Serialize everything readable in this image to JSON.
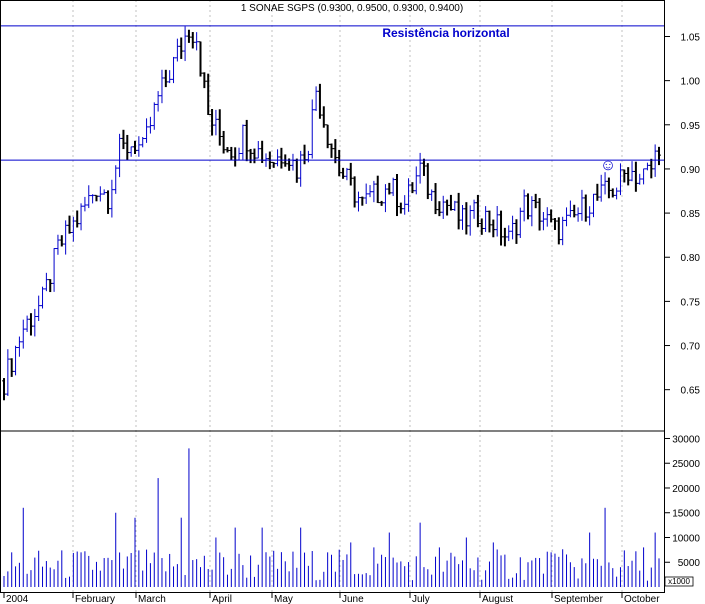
{
  "chart_data": {
    "type": "ohlc",
    "title": "1 SONAE SGPS (0.9300, 0.9500, 0.9300, 0.9400)",
    "annotation": "Resistência horizontal",
    "colors": {
      "up": "#0000cc",
      "down": "#000000",
      "line": "#0000cc",
      "grid": "#999999"
    },
    "price_axis": {
      "ylim": [
        0.61,
        1.08
      ],
      "ticks": [
        "0.65",
        "0.70",
        "0.75",
        "0.80",
        "0.85",
        "0.90",
        "0.95",
        "1.00",
        "1.05"
      ]
    },
    "volume_axis": {
      "ylim": [
        0,
        30500
      ],
      "ticks": [
        "5000",
        "10000",
        "15000",
        "20000",
        "25000",
        "30000"
      ],
      "unit_label": "x1000"
    },
    "x_labels": [
      "2004",
      "February",
      "March",
      "April",
      "May",
      "June",
      "July",
      "August",
      "September",
      "October"
    ],
    "horizontal_lines": [
      0.91,
      1.062
    ],
    "smiley_marker": "☺",
    "price_path_points": [
      [
        0,
        0.66
      ],
      [
        5,
        0.72
      ],
      [
        10,
        0.75
      ],
      [
        14,
        0.81
      ],
      [
        20,
        0.85
      ],
      [
        24,
        0.88
      ],
      [
        27,
        0.87
      ],
      [
        30,
        0.92
      ],
      [
        34,
        0.93
      ],
      [
        36,
        0.92
      ],
      [
        40,
        0.98
      ],
      [
        45,
        1.03
      ],
      [
        48,
        1.06
      ],
      [
        50,
        1.05
      ],
      [
        53,
        0.96
      ],
      [
        57,
        0.93
      ],
      [
        60,
        0.92
      ],
      [
        62,
        0.94
      ],
      [
        66,
        0.92
      ],
      [
        70,
        0.91
      ],
      [
        73,
        0.92
      ],
      [
        76,
        0.9
      ],
      [
        79,
        0.93
      ],
      [
        81,
        0.99
      ],
      [
        84,
        0.94
      ],
      [
        87,
        0.9
      ],
      [
        90,
        0.88
      ],
      [
        93,
        0.86
      ],
      [
        96,
        0.87
      ],
      [
        100,
        0.88
      ],
      [
        104,
        0.86
      ],
      [
        108,
        0.9
      ],
      [
        111,
        0.87
      ],
      [
        115,
        0.86
      ],
      [
        119,
        0.84
      ],
      [
        123,
        0.85
      ],
      [
        127,
        0.84
      ],
      [
        131,
        0.82
      ],
      [
        135,
        0.86
      ],
      [
        139,
        0.85
      ],
      [
        143,
        0.83
      ],
      [
        147,
        0.84
      ],
      [
        151,
        0.86
      ],
      [
        155,
        0.87
      ],
      [
        159,
        0.88
      ],
      [
        162,
        0.9
      ],
      [
        165,
        0.89
      ],
      [
        168,
        0.9
      ],
      [
        170,
        0.93
      ]
    ],
    "volume_spikes": [
      [
        5,
        16
      ],
      [
        20,
        7
      ],
      [
        29,
        15
      ],
      [
        34,
        14
      ],
      [
        40,
        22
      ],
      [
        46,
        14
      ],
      [
        48,
        28
      ],
      [
        55,
        10
      ],
      [
        60,
        12
      ],
      [
        67,
        12
      ],
      [
        77,
        12
      ],
      [
        84,
        7
      ],
      [
        90,
        9
      ],
      [
        96,
        8
      ],
      [
        100,
        11
      ],
      [
        108,
        13
      ],
      [
        113,
        8
      ],
      [
        120,
        10
      ],
      [
        127,
        9
      ],
      [
        134,
        6
      ],
      [
        142,
        7
      ],
      [
        147,
        5
      ],
      [
        152,
        11
      ],
      [
        156,
        16
      ],
      [
        160,
        4
      ],
      [
        166,
        8
      ],
      [
        169,
        11
      ]
    ]
  }
}
